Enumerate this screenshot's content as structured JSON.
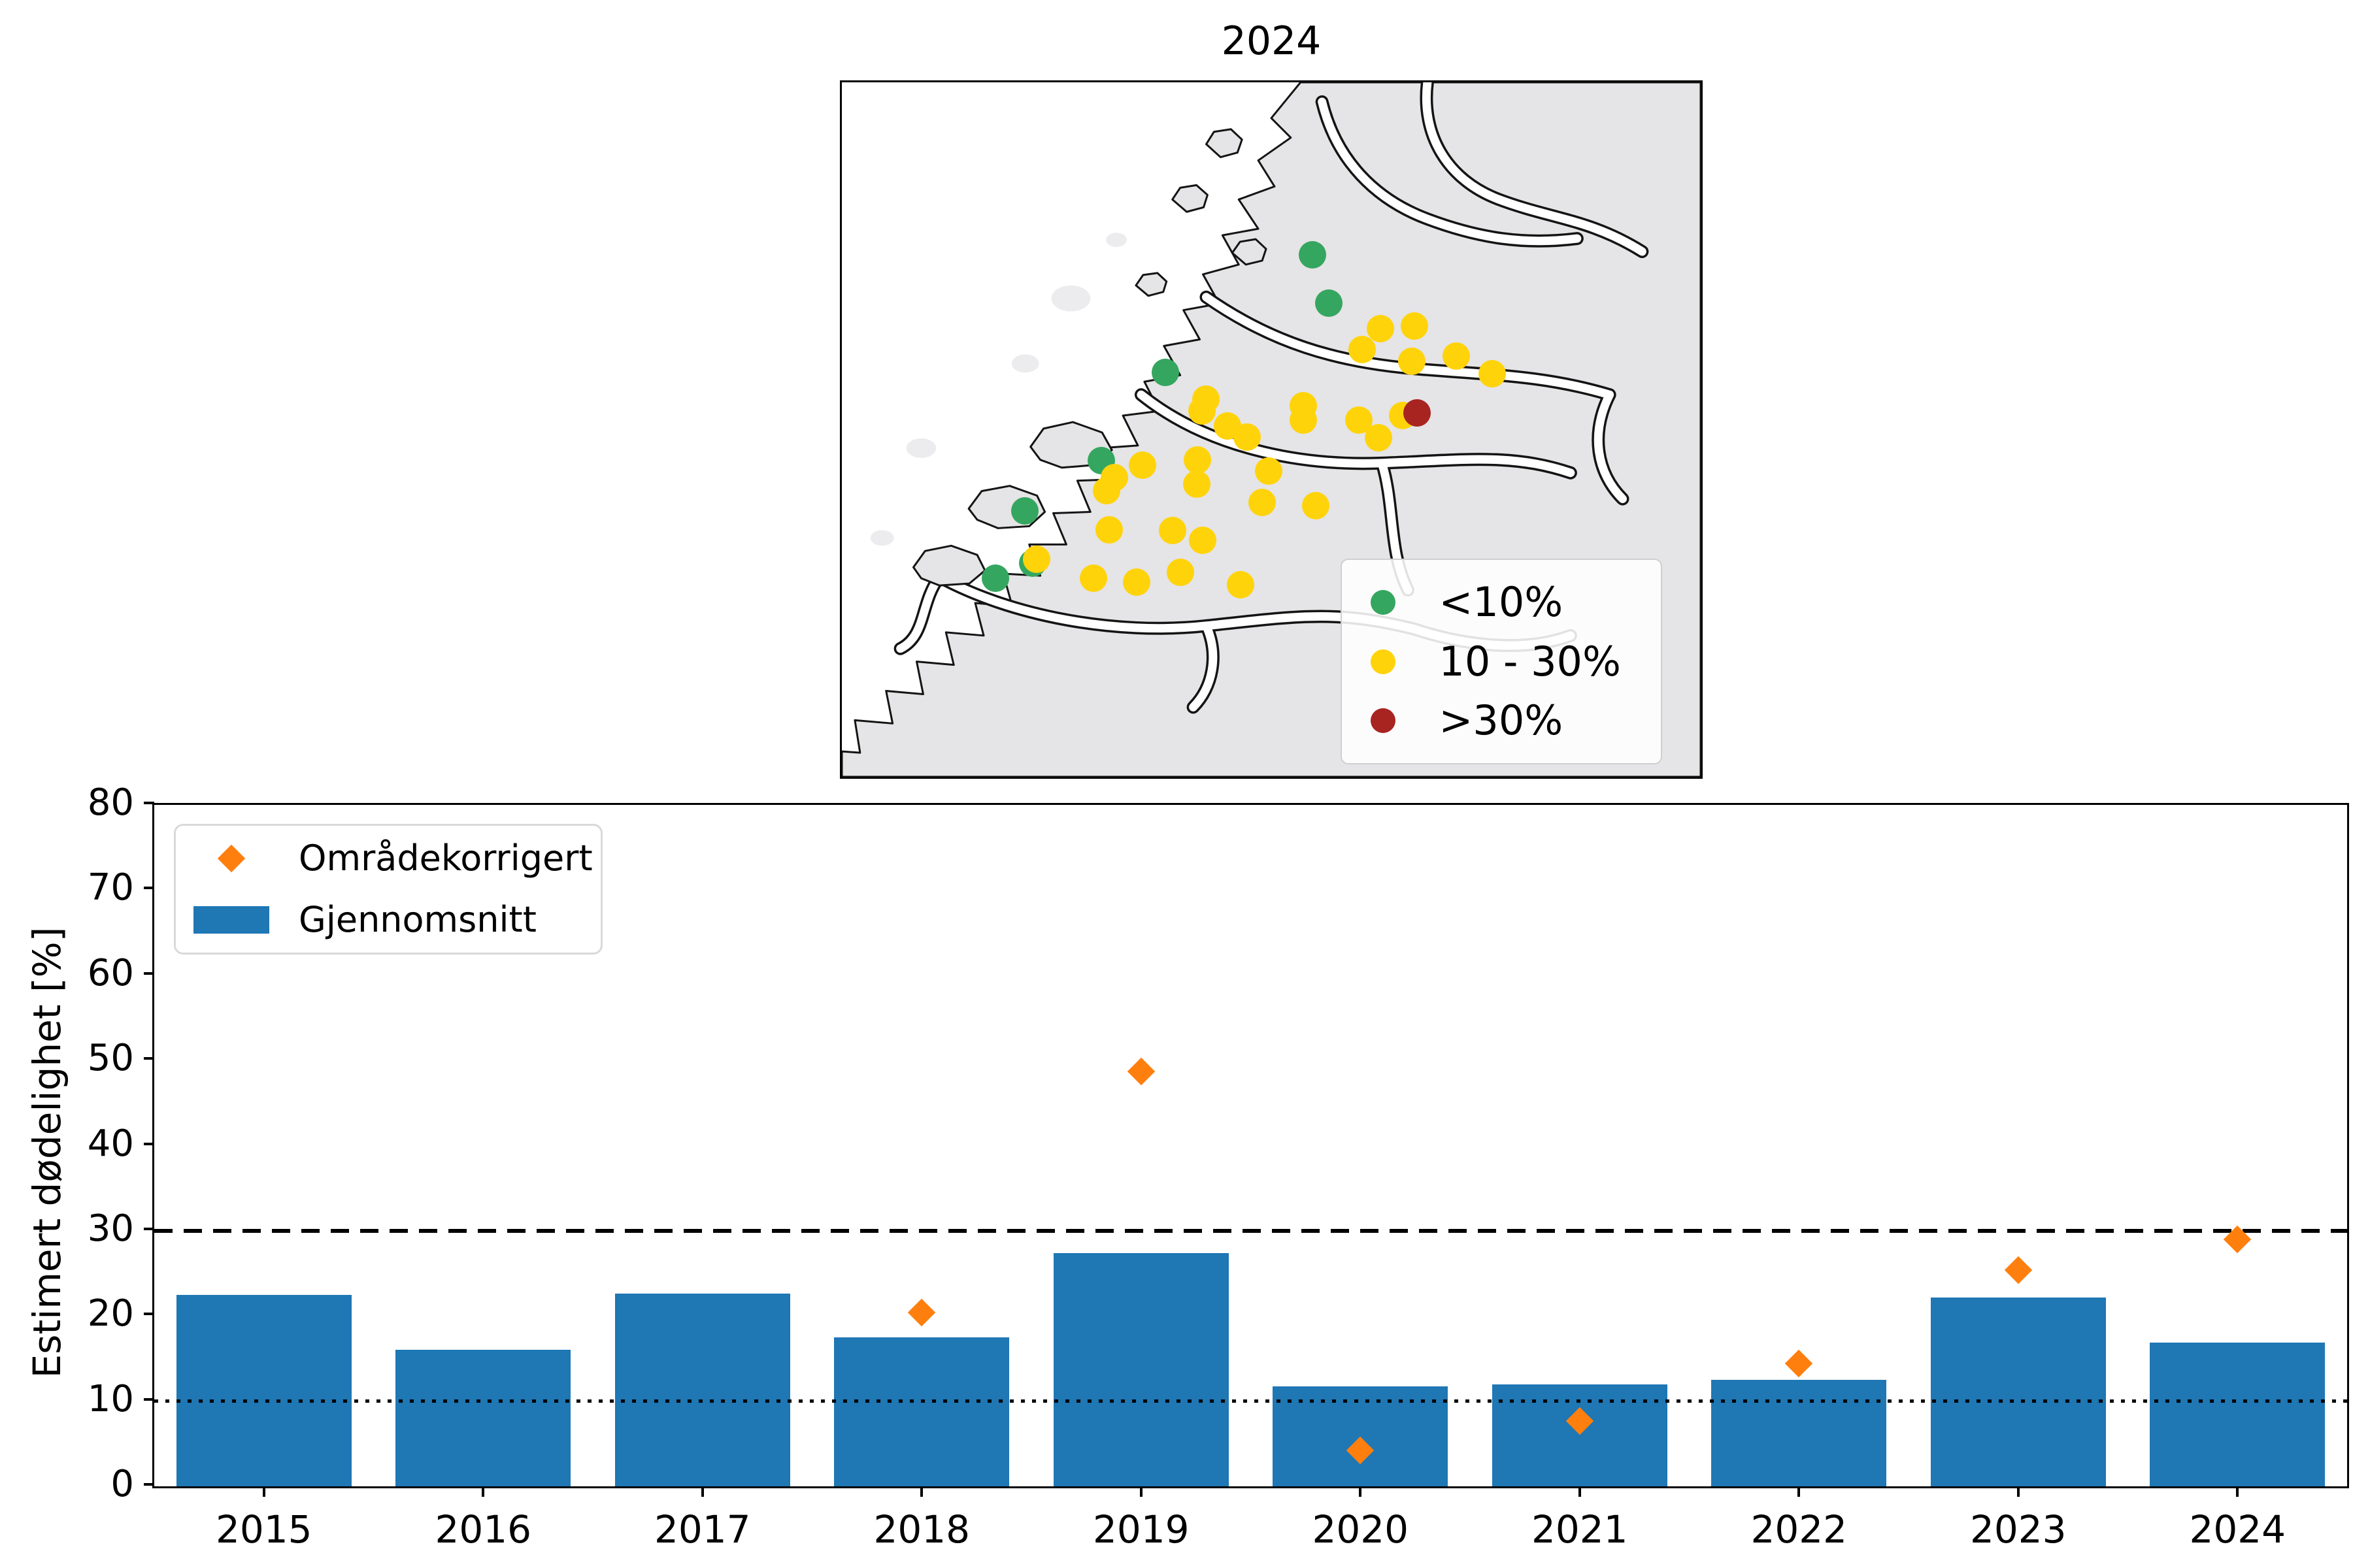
{
  "chart_data": [
    {
      "id": "map-2024",
      "type": "scatter",
      "subtype": "geographic-map",
      "title": "2024",
      "legend_position": "lower right",
      "legend": [
        {
          "label": "<10%",
          "color": "#35a65f"
        },
        {
          "label": "10 - 30%",
          "color": "#ffd30a"
        },
        {
          "label": ">30%",
          "color": "#a82421"
        }
      ],
      "map_colors": {
        "sea": "#ffffff",
        "land": "#e5e4e6",
        "islet": "#ececee",
        "coast_outline": "#141414"
      },
      "series": [
        {
          "band": "lt10",
          "name": "<10%",
          "color": "#35a65f",
          "points_pct": [
            [
              54.8,
              24.8
            ],
            [
              56.7,
              31.8
            ],
            [
              37.7,
              41.8
            ],
            [
              30.2,
              54.5
            ],
            [
              21.3,
              61.7
            ],
            [
              17.9,
              71.4
            ],
            [
              22.2,
              69.2
            ]
          ]
        },
        {
          "band": "10to30",
          "name": "10 - 30%",
          "color": "#ffd30a",
          "points_pct": [
            [
              62.7,
              35.5
            ],
            [
              66.7,
              35.1
            ],
            [
              60.6,
              38.5
            ],
            [
              66.4,
              40.2
            ],
            [
              71.5,
              39.4
            ],
            [
              75.7,
              42.0
            ],
            [
              53.7,
              46.6
            ],
            [
              53.7,
              48.6
            ],
            [
              60.2,
              48.6
            ],
            [
              65.3,
              48.0
            ],
            [
              62.5,
              51.2
            ],
            [
              49.7,
              56.0
            ],
            [
              48.9,
              60.5
            ],
            [
              55.2,
              61.0
            ],
            [
              42.4,
              45.6
            ],
            [
              41.9,
              47.3
            ],
            [
              44.9,
              49.5
            ],
            [
              47.2,
              51.1
            ],
            [
              35.0,
              55.1
            ],
            [
              31.7,
              56.9
            ],
            [
              30.8,
              58.8
            ],
            [
              41.4,
              54.4
            ],
            [
              41.3,
              57.9
            ],
            [
              31.1,
              64.4
            ],
            [
              38.5,
              64.5
            ],
            [
              42.0,
              65.9
            ],
            [
              22.7,
              68.7
            ],
            [
              29.3,
              71.4
            ],
            [
              34.3,
              72.0
            ],
            [
              39.4,
              70.6
            ],
            [
              46.4,
              72.3
            ]
          ]
        },
        {
          "band": "gt30",
          "name": ">30%",
          "color": "#a82421",
          "points_pct": [
            [
              67.0,
              47.6
            ]
          ]
        }
      ]
    },
    {
      "id": "mortality-by-year",
      "type": "bar",
      "categories": [
        "2015",
        "2016",
        "2017",
        "2018",
        "2019",
        "2020",
        "2021",
        "2022",
        "2023",
        "2024"
      ],
      "series": [
        {
          "name": "Gjennomsnitt",
          "type": "bar",
          "color": "#1f77b4",
          "values": [
            22.5,
            16.0,
            22.6,
            17.5,
            27.4,
            11.7,
            12.0,
            12.5,
            22.2,
            16.9
          ]
        },
        {
          "name": "Områdekorrigert",
          "type": "scatter",
          "marker": "diamond",
          "color": "#ff7f0e",
          "values": [
            null,
            null,
            null,
            20.4,
            48.7,
            4.2,
            7.7,
            14.4,
            25.4,
            29.0
          ]
        }
      ],
      "ylabel": "Estimert dødelighet [%]",
      "xlabel": "",
      "ylim": [
        0,
        80
      ],
      "yticks": [
        0,
        10,
        20,
        30,
        40,
        50,
        60,
        70,
        80
      ],
      "reference_lines": [
        {
          "y": 30,
          "style": "dashed",
          "color": "#000000"
        },
        {
          "y": 10,
          "style": "dotted",
          "color": "#000000"
        }
      ],
      "legend": [
        {
          "marker": "diamond",
          "label": "Områdekorrigert",
          "color": "#ff7f0e"
        },
        {
          "marker": "bar",
          "label": "Gjennomsnitt",
          "color": "#1f77b4"
        }
      ],
      "legend_position": "upper left",
      "grid": false
    }
  ]
}
